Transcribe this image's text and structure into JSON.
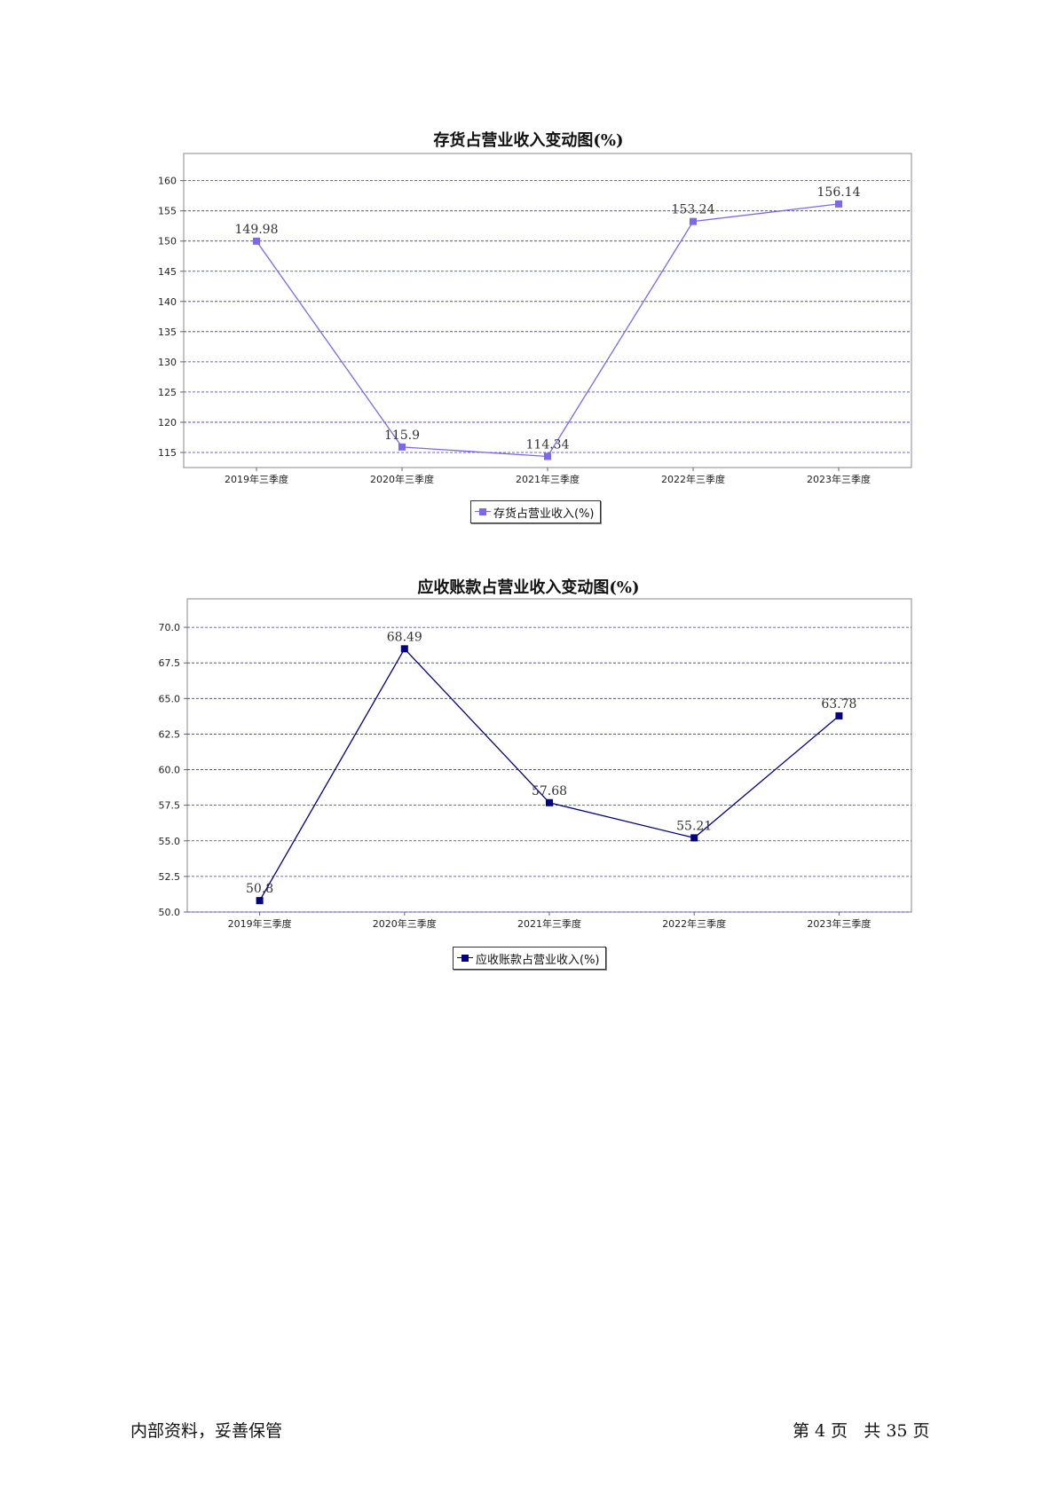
{
  "charts": [
    {
      "type": "line",
      "title": "存货占营业收入变动图(%)",
      "categories": [
        "2019年三季度",
        "2020年三季度",
        "2021年三季度",
        "2022年三季度",
        "2023年三季度"
      ],
      "series": [
        {
          "name": "存货占营业收入(%)",
          "values": [
            149.98,
            115.9,
            114.34,
            153.24,
            156.14
          ]
        }
      ],
      "data_labels": [
        "149.98",
        "115.9",
        "114.34",
        "153.24",
        "156.14"
      ],
      "yticks": [
        "115",
        "120",
        "125",
        "130",
        "135",
        "140",
        "145",
        "150",
        "155",
        "160"
      ],
      "ylim": [
        112.5,
        164.5
      ],
      "grid": true,
      "legend_position": "bottom-center",
      "color": "#7b68ee"
    },
    {
      "type": "line",
      "title": "应收账款占营业收入变动图(%)",
      "categories": [
        "2019年三季度",
        "2020年三季度",
        "2021年三季度",
        "2022年三季度",
        "2023年三季度"
      ],
      "series": [
        {
          "name": "应收账款占营业收入(%)",
          "values": [
            50.8,
            68.49,
            57.68,
            55.21,
            63.78
          ]
        }
      ],
      "data_labels": [
        "50.8",
        "68.49",
        "57.68",
        "55.21",
        "63.78"
      ],
      "yticks": [
        "50.0",
        "52.5",
        "55.0",
        "57.5",
        "60.0",
        "62.5",
        "65.0",
        "67.5",
        "70.0"
      ],
      "ylim": [
        50.0,
        72.0
      ],
      "grid": true,
      "legend_position": "bottom-center",
      "color": "#000080"
    }
  ],
  "footer": {
    "left": "内部资料，妥善保管",
    "right": "第 4 页   共 35 页"
  }
}
